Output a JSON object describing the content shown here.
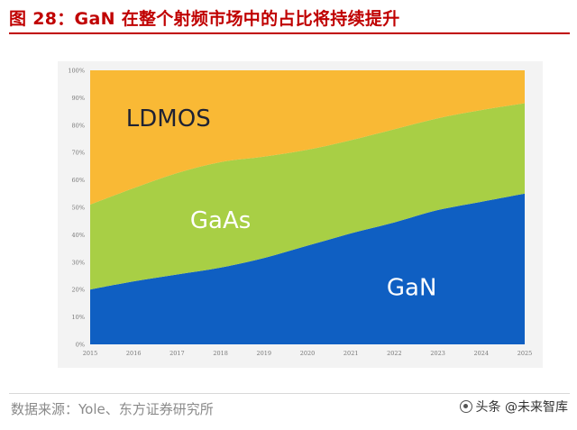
{
  "header": {
    "title": "图 28：GaN 在整个射频市场中的占比将持续提升"
  },
  "footer": {
    "source": "数据来源：Yole、东方证券研究所",
    "watermark": "头条 @未来智库"
  },
  "chart_data": {
    "type": "area",
    "stacked": true,
    "percent_stacked": true,
    "title": "",
    "xlabel": "",
    "ylabel": "",
    "x": [
      "2015",
      "2016",
      "2017",
      "2018",
      "2019",
      "2020",
      "2021",
      "2022",
      "2023",
      "2024",
      "2025"
    ],
    "ylim": [
      0,
      100
    ],
    "yticks": [
      "0%",
      "10%",
      "20%",
      "30%",
      "40%",
      "50%",
      "60%",
      "70%",
      "80%",
      "90%",
      "100%"
    ],
    "grid": false,
    "legend": "none",
    "series": [
      {
        "name": "GaN",
        "color": "#0f5fc2",
        "values": [
          20,
          23,
          25.5,
          28,
          31.5,
          36,
          40.5,
          44.5,
          49,
          52,
          55
        ]
      },
      {
        "name": "GaAs",
        "color": "#a8cf45",
        "values": [
          31,
          34,
          37,
          38.5,
          37,
          35,
          34,
          34,
          33.5,
          33.5,
          33
        ]
      },
      {
        "name": "LDMOS",
        "color": "#f9b935",
        "values": [
          49,
          43,
          37.5,
          33.5,
          31.5,
          29,
          25.5,
          21.5,
          17.5,
          14.5,
          12
        ]
      }
    ]
  }
}
